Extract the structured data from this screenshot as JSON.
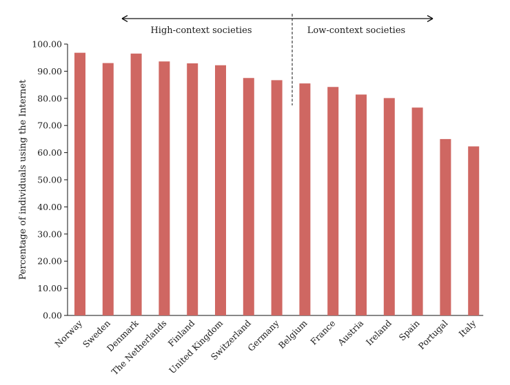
{
  "chart_data": {
    "type": "bar",
    "title": "",
    "xlabel": "",
    "ylabel": "Percentage of individuals using the Internet",
    "ylim": [
      0,
      100
    ],
    "yticks": [
      "0.00",
      "10.00",
      "20.00",
      "30.00",
      "40.00",
      "50.00",
      "60.00",
      "70.00",
      "80.00",
      "90.00",
      "100.00"
    ],
    "categories": [
      "Norway",
      "Sweden",
      "Denmark",
      "The Netherlands",
      "Finland",
      "United Kingdom",
      "Switzerland",
      "Germany",
      "Belgium",
      "France",
      "Austria",
      "Ireland",
      "Spain",
      "Portugal",
      "Italy"
    ],
    "values": [
      96.8,
      93.0,
      96.5,
      93.6,
      92.9,
      92.2,
      87.5,
      86.7,
      85.5,
      84.2,
      81.4,
      80.1,
      76.6,
      65.0,
      62.3
    ],
    "bar_color": "#cf6762",
    "grid": false,
    "legend": "none",
    "annotations": {
      "high_context": "High-context societies",
      "low_context": "Low-context societies"
    }
  }
}
